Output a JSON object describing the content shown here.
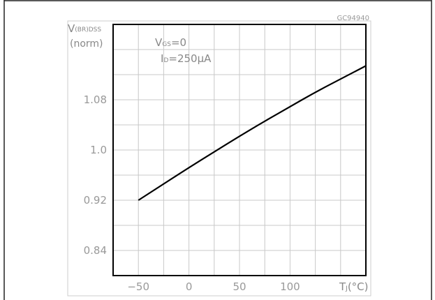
{
  "figure_id": "GC94940",
  "chart_data": {
    "type": "line",
    "ylabel_line1_main": "V",
    "ylabel_line1_sub": "(BR)DSS",
    "ylabel_line2": "(norm)",
    "xlabel_main": "T",
    "xlabel_sub": "J",
    "xlabel_unit": "(°C)",
    "annotation_line1_main": "V",
    "annotation_line1_sub": "GS",
    "annotation_line1_rest": "=0",
    "annotation_line2_main": "I",
    "annotation_line2_sub": "D",
    "annotation_line2_rest": "=250μA",
    "xlim": [
      -75,
      175
    ],
    "ylim": [
      0.8,
      1.2
    ],
    "grid": true,
    "x_ticks": [
      {
        "value": -50,
        "label": "−50"
      },
      {
        "value": 0,
        "label": "0"
      },
      {
        "value": 50,
        "label": "50"
      },
      {
        "value": 100,
        "label": "100"
      }
    ],
    "y_ticks": [
      {
        "value": 0.84,
        "label": "0.84"
      },
      {
        "value": 0.92,
        "label": "0.92"
      },
      {
        "value": 1.0,
        "label": "1.0"
      },
      {
        "value": 1.08,
        "label": "1.08"
      }
    ],
    "series": [
      {
        "x": [
          -50,
          -25,
          0,
          25,
          50,
          75,
          100,
          125,
          150,
          175
        ],
        "y": [
          0.92,
          0.946,
          0.972,
          0.997,
          1.022,
          1.046,
          1.069,
          1.092,
          1.113,
          1.134
        ]
      }
    ]
  }
}
